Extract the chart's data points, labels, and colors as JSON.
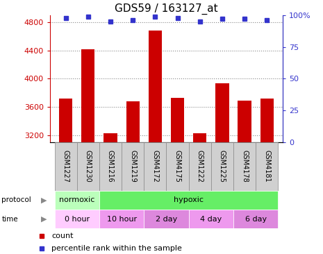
{
  "title": "GDS59 / 163127_at",
  "samples": [
    "GSM1227",
    "GSM1230",
    "GSM1216",
    "GSM1219",
    "GSM4172",
    "GSM4175",
    "GSM1222",
    "GSM1225",
    "GSM4178",
    "GSM4181"
  ],
  "counts": [
    3720,
    4420,
    3230,
    3680,
    4680,
    3730,
    3230,
    3940,
    3690,
    3720
  ],
  "percentiles": [
    98,
    99,
    95,
    96,
    99,
    98,
    95,
    97,
    97,
    96
  ],
  "bar_color": "#cc0000",
  "dot_color": "#3333cc",
  "ylim_left": [
    3100,
    4900
  ],
  "yticks_left": [
    3200,
    3600,
    4000,
    4400,
    4800
  ],
  "ylim_right": [
    0,
    100
  ],
  "yticks_right": [
    0,
    25,
    50,
    75,
    100
  ],
  "protocol_groups": [
    {
      "label": "normoxic",
      "start": 0,
      "end": 2,
      "color": "#bbffbb"
    },
    {
      "label": "hypoxic",
      "start": 2,
      "end": 10,
      "color": "#66ee66"
    }
  ],
  "time_groups": [
    {
      "label": "0 hour",
      "start": 0,
      "end": 2,
      "color": "#ffccff"
    },
    {
      "label": "10 hour",
      "start": 2,
      "end": 4,
      "color": "#ee99ee"
    },
    {
      "label": "2 day",
      "start": 4,
      "end": 6,
      "color": "#dd88dd"
    },
    {
      "label": "4 day",
      "start": 6,
      "end": 8,
      "color": "#ee99ee"
    },
    {
      "label": "6 day",
      "start": 8,
      "end": 10,
      "color": "#dd88dd"
    }
  ],
  "legend_count_label": "count",
  "legend_pct_label": "percentile rank within the sample",
  "title_fontsize": 11,
  "tick_fontsize": 8,
  "sample_fontsize": 7,
  "row_fontsize": 8,
  "legend_fontsize": 8,
  "background_color": "#ffffff",
  "grid_color": "#888888",
  "sample_box_color": "#d0d0d0",
  "sample_box_edge": "#888888"
}
